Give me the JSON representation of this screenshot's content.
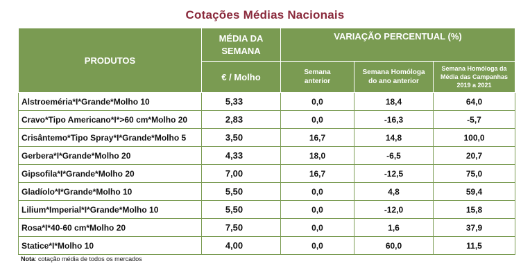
{
  "title": "Cotações Médias Nacionais",
  "headers": {
    "produtos": "PRODUTOS",
    "media_line1": "MÉDIA DA",
    "media_line2": "SEMANA",
    "variacao": "VARIAÇÃO PERCENTUAL (%)",
    "unit": "€ / Molho",
    "semana_anterior_1": "Semana",
    "semana_anterior_2": "anterior",
    "homologa_1": "Semana Homóloga",
    "homologa_2": "do ano anterior",
    "homologa_media_1": "Semana Homóloga da",
    "homologa_media_2": "Média das Campanhas",
    "homologa_media_3": "2019 a 2021"
  },
  "rows": [
    {
      "produto": "Alstroeméria*I*Grande*Molho 10",
      "media": "5,33",
      "anterior": "0,0",
      "homologa": "18,4",
      "homologa_media": "64,0"
    },
    {
      "produto": "Cravo*Tipo Americano*I*>60 cm*Molho 20",
      "media": "2,83",
      "anterior": "0,0",
      "homologa": "-16,3",
      "homologa_media": "-5,7"
    },
    {
      "produto": "Crisântemo*Tipo Spray*I*Grande*Molho 5",
      "media": "3,50",
      "anterior": "16,7",
      "homologa": "14,8",
      "homologa_media": "100,0"
    },
    {
      "produto": "Gerbera*I*Grande*Molho 20",
      "media": "4,33",
      "anterior": "18,0",
      "homologa": "-6,5",
      "homologa_media": "20,7"
    },
    {
      "produto": "Gipsofila*I*Grande*Molho 20",
      "media": "7,00",
      "anterior": "16,7",
      "homologa": "-12,5",
      "homologa_media": "75,0"
    },
    {
      "produto": "Gladíolo*I*Grande*Molho 10",
      "media": "5,50",
      "anterior": "0,0",
      "homologa": "4,8",
      "homologa_media": "59,4"
    },
    {
      "produto": "Lilium*Imperial*I*Grande*Molho 10",
      "media": "5,50",
      "anterior": "0,0",
      "homologa": "-12,0",
      "homologa_media": "15,8"
    },
    {
      "produto": "Rosa*I*40-60 cm*Molho 20",
      "media": "7,50",
      "anterior": "0,0",
      "homologa": "1,6",
      "homologa_media": "37,9"
    },
    {
      "produto": "Statice*I*Molho 10",
      "media": "4,00",
      "anterior": "0,0",
      "homologa": "60,0",
      "homologa_media": "11,5"
    }
  ],
  "note": {
    "label": "Nota",
    "text": ": cotação média de todos os mercados"
  }
}
